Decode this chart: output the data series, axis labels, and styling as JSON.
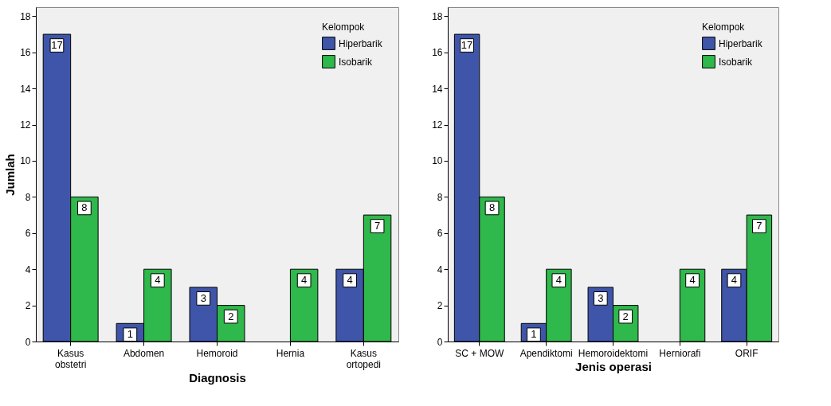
{
  "chart_data": [
    {
      "type": "bar",
      "xlabel": "Diagnosis",
      "ylabel": "Jumlah",
      "legend_title": "Kelompok",
      "legend": "top right",
      "data_labels": true,
      "grid": false,
      "ylim": [
        0,
        18.5
      ],
      "yticks": [
        0,
        2,
        4,
        6,
        8,
        10,
        12,
        14,
        16,
        18
      ],
      "categories": [
        "Kasus obstetri",
        "Abdomen",
        "Hemoroid",
        "Hernia",
        "Kasus ortopedi"
      ],
      "series": [
        {
          "name": "Hiperbarik",
          "color": "#3f55a9",
          "values": [
            17,
            1,
            3,
            null,
            4
          ]
        },
        {
          "name": "Isobarik",
          "color": "#2fb84b",
          "values": [
            8,
            4,
            2,
            4,
            7
          ]
        }
      ]
    },
    {
      "type": "bar",
      "xlabel": "Jenis operasi",
      "legend_title": "Kelompok",
      "legend": "top right",
      "data_labels": true,
      "grid": false,
      "ylim": [
        0,
        18.5
      ],
      "yticks": [
        0,
        2,
        4,
        6,
        8,
        10,
        12,
        14,
        16,
        18
      ],
      "categories": [
        "SC + MOW",
        "Apendiktomi",
        "Hemoroidektomi",
        "Herniorafi",
        "ORIF"
      ],
      "series": [
        {
          "name": "Hiperbarik",
          "color": "#3f55a9",
          "values": [
            17,
            1,
            3,
            null,
            4
          ]
        },
        {
          "name": "Isobarik",
          "color": "#2fb84b",
          "values": [
            8,
            4,
            2,
            4,
            7
          ]
        }
      ]
    }
  ]
}
